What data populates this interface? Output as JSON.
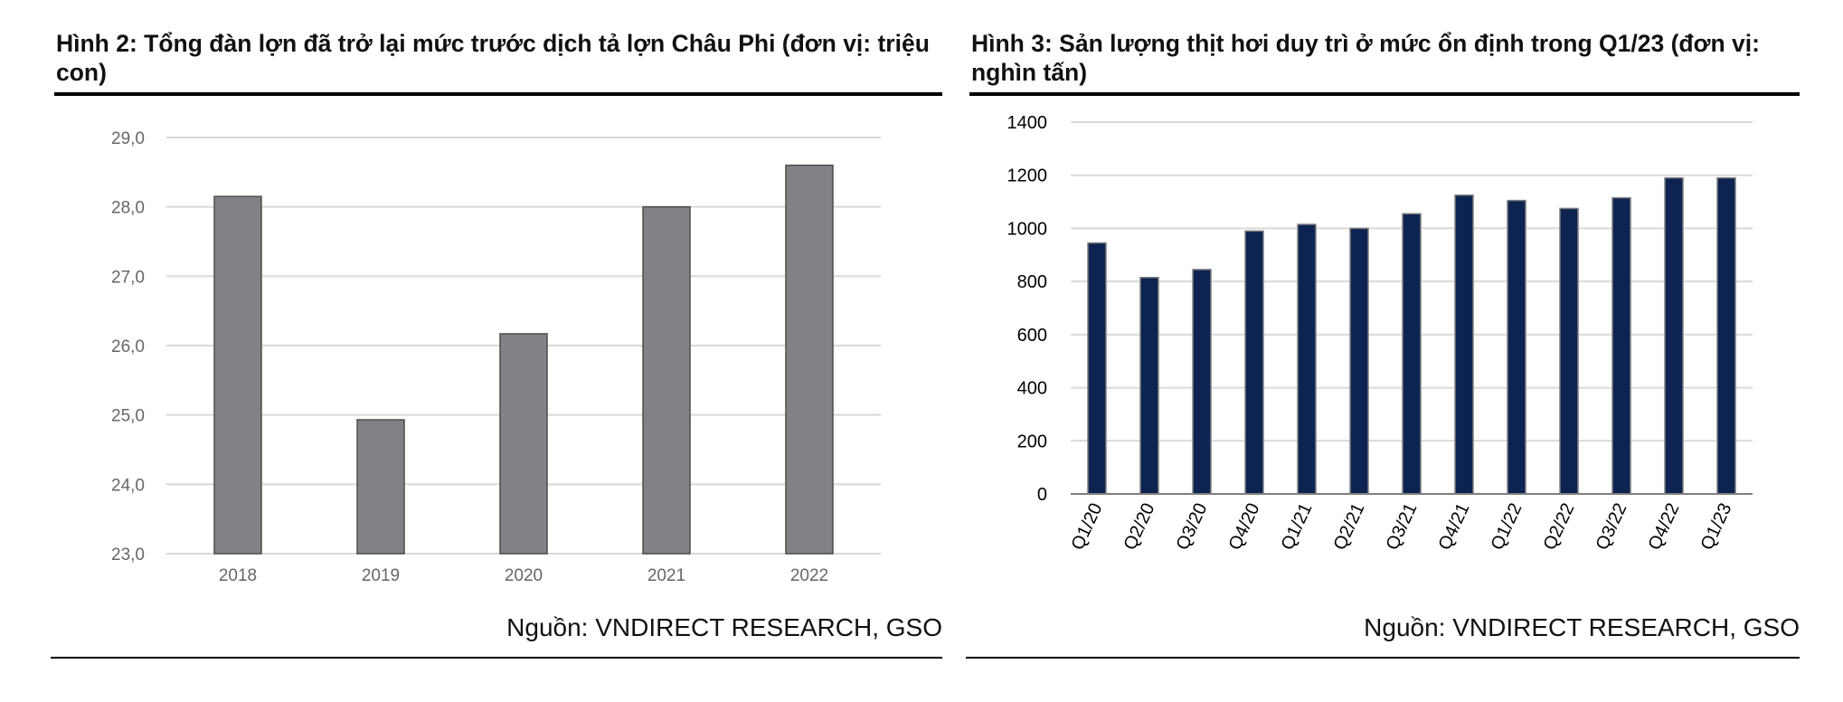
{
  "charts": [
    {
      "figure_title": "Hình 2: Tổng đàn lợn đã trở lại mức trước dịch tả lợn Châu Phi (đơn vị: triệu con)",
      "source": "Nguồn: VNDIRECT RESEARCH, GSO",
      "bar_color": "#808285",
      "bar_stroke": "#4d4d4d",
      "grid_color": "#d9d9d9",
      "chart_data": {
        "type": "bar",
        "categories": [
          "2018",
          "2019",
          "2020",
          "2021",
          "2022"
        ],
        "values": [
          28.15,
          24.93,
          26.17,
          28.0,
          28.6
        ],
        "ylim": [
          23.0,
          29.0
        ],
        "yticks": [
          "23,0",
          "24,0",
          "25,0",
          "26,0",
          "27,0",
          "28,0",
          "29,0"
        ],
        "grid": true
      }
    },
    {
      "figure_title": "Hình 3: Sản lượng thịt hơi duy trì ở mức ổn định trong Q1/23 (đơn vị: nghìn tấn)",
      "source": "Nguồn: VNDIRECT RESEARCH, GSO",
      "bar_color": "#0d2352",
      "bar_stroke": "#7f7f7f",
      "grid_color": "#d9d9d9",
      "chart_data": {
        "type": "bar",
        "categories": [
          "Q1/20",
          "Q2/20",
          "Q3/20",
          "Q4/20",
          "Q1/21",
          "Q2/21",
          "Q3/21",
          "Q4/21",
          "Q1/22",
          "Q2/22",
          "Q3/22",
          "Q4/22",
          "Q1/23"
        ],
        "values": [
          945,
          815,
          845,
          990,
          1015,
          1000,
          1055,
          1125,
          1105,
          1075,
          1115,
          1190,
          1190
        ],
        "ylim": [
          0,
          1400
        ],
        "yticks": [
          "0",
          "200",
          "400",
          "600",
          "800",
          "1000",
          "1200",
          "1400"
        ],
        "grid": true
      }
    }
  ]
}
